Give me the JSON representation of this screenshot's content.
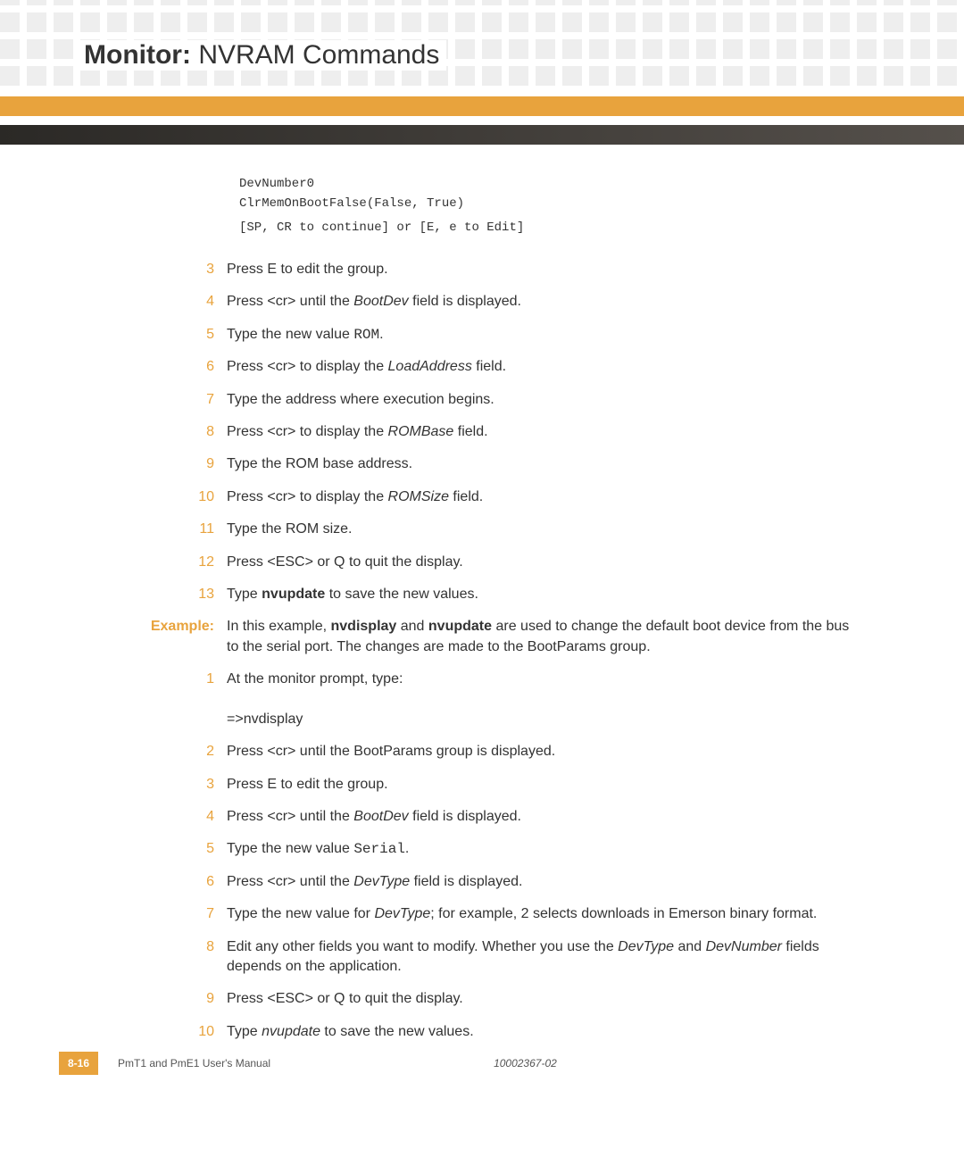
{
  "header": {
    "title_bold": "Monitor:",
    "title_light": "NVRAM Commands"
  },
  "colors": {
    "accent": "#e8a33d",
    "dark_stripe_start": "#2b2926",
    "dark_stripe_end": "#55504b",
    "bg_square": "#eeeeee",
    "text": "#333333"
  },
  "code": {
    "line1": "DevNumber0",
    "line2": "ClrMemOnBootFalse(False, True)",
    "line3": "[SP, CR to continue] or [E, e to Edit]"
  },
  "stepsA": [
    {
      "n": "3",
      "html": "Press E to edit the group."
    },
    {
      "n": "4",
      "html": "Press <cr> until the <i>BootDev</i> field is displayed."
    },
    {
      "n": "5",
      "html": "Type the new value <m>ROM</m>."
    },
    {
      "n": "6",
      "html": "Press <cr> to display the <i>LoadAddress</i> field."
    },
    {
      "n": "7",
      "html": "Type the address where execution begins."
    },
    {
      "n": "8",
      "html": "Press <cr> to display the <i>ROMBase</i> field."
    },
    {
      "n": "9",
      "html": "Type the ROM base address."
    },
    {
      "n": "10",
      "html": "Press <cr> to display the <i>ROMSize</i> field."
    },
    {
      "n": "11",
      "html": "Type the ROM size."
    },
    {
      "n": "12",
      "html": "Press <ESC> or Q to quit the display."
    },
    {
      "n": "13",
      "html": "Type <b>nvupdate</b> to save the new values."
    }
  ],
  "example": {
    "label": "Example:",
    "intro": "In this example, <b>nvdisplay</b> and <b>nvupdate</b> are used to change the default boot device from the bus to the serial port. The changes are made to the BootParams group."
  },
  "stepsB": [
    {
      "n": "1",
      "html": "At the monitor prompt, type:<br><br>=>nvdisplay"
    },
    {
      "n": "2",
      "html": "Press <cr> until the BootParams group is displayed."
    },
    {
      "n": "3",
      "html": "Press E to edit the group."
    },
    {
      "n": "4",
      "html": "Press <cr> until the <i>BootDev</i> field is displayed."
    },
    {
      "n": "5",
      "html": "Type the new value <m>Serial</m>."
    },
    {
      "n": "6",
      "html": "Press <cr> until the <i>DevType</i> field is displayed."
    },
    {
      "n": "7",
      "html": "Type the new value for <i>DevType</i>; for example, 2 selects downloads in Emerson binary format."
    },
    {
      "n": "8",
      "html": "Edit any other fields you want to modify. Whether you use the <i>DevType</i> and <i>DevNumber</i> fields depends on the application."
    },
    {
      "n": "9",
      "html": "Press <ESC> or Q to quit the display."
    },
    {
      "n": "10",
      "html": "Type <i>nvupdate</i> to save the new values."
    }
  ],
  "footer": {
    "page": "8-16",
    "manual": "PmT1 and PmE1 User's Manual",
    "doc_id": "10002367-02"
  }
}
